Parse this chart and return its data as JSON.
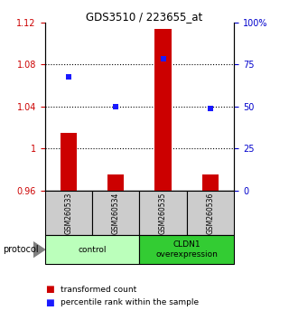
{
  "title": "GDS3510 / 223655_at",
  "samples": [
    "GSM260533",
    "GSM260534",
    "GSM260535",
    "GSM260536"
  ],
  "bar_values": [
    1.015,
    0.975,
    1.114,
    0.975
  ],
  "bar_base": 0.96,
  "dot_values": [
    1.068,
    1.04,
    1.085,
    1.038
  ],
  "ylim_left": [
    0.96,
    1.12
  ],
  "yticks_left": [
    0.96,
    1.0,
    1.04,
    1.08,
    1.12
  ],
  "ytick_labels_left": [
    "0.96",
    "1",
    "1.04",
    "1.08",
    "1.12"
  ],
  "yticks_right": [
    0,
    25,
    50,
    75,
    100
  ],
  "ytick_labels_right": [
    "0",
    "25",
    "50",
    "75",
    "100%"
  ],
  "hlines": [
    1.0,
    1.04,
    1.08
  ],
  "bar_color": "#cc0000",
  "dot_color": "#1a1aff",
  "groups": [
    {
      "label": "control",
      "color": "#bbffbb"
    },
    {
      "label": "CLDN1\noverexpression",
      "color": "#33cc33"
    }
  ],
  "protocol_label": "protocol",
  "legend_bar_label": "transformed count",
  "legend_dot_label": "percentile rank within the sample",
  "plot_bg": "#ffffff",
  "left_tick_color": "#cc0000",
  "right_tick_color": "#0000cc",
  "sample_box_color": "#cccccc"
}
